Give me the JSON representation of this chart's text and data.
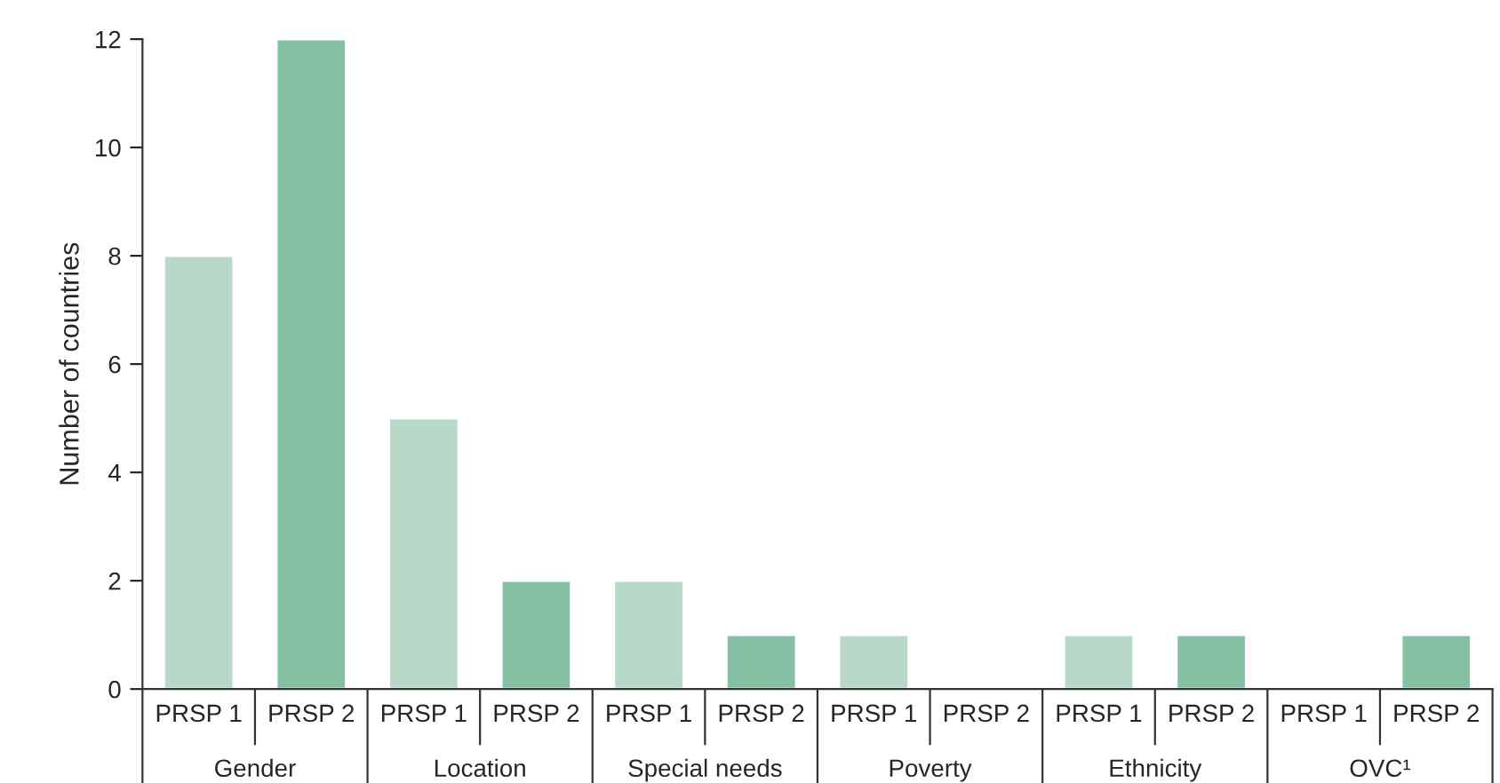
{
  "chart_data": {
    "type": "bar",
    "ylabel": "Number of countries",
    "categories": [
      "Gender",
      "Location",
      "Special needs",
      "Poverty",
      "Ethnicity",
      "OVC¹"
    ],
    "series": [
      {
        "name": "PRSP 1",
        "color": "#b8d8c8",
        "values": [
          8,
          5,
          2,
          1,
          1,
          0
        ]
      },
      {
        "name": "PRSP 2",
        "color": "#85c0a4",
        "values": [
          12,
          2,
          1,
          0,
          1,
          1
        ]
      }
    ],
    "ylim": [
      0,
      12
    ],
    "yticks": [
      0,
      2,
      4,
      6,
      8,
      10,
      12
    ],
    "grid": false,
    "legend": false
  }
}
